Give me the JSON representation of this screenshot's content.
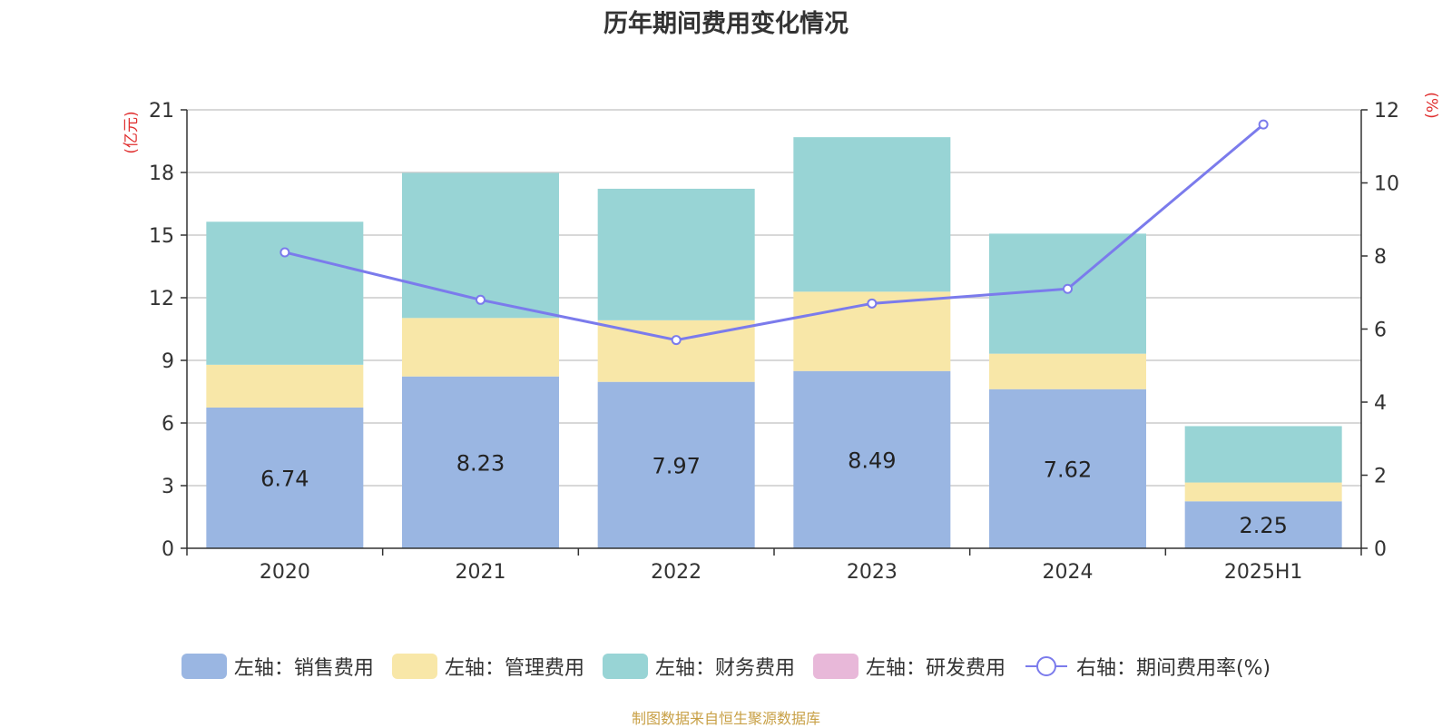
{
  "chart_data": {
    "type": "bar",
    "title": "历年期间费用变化情况",
    "categories": [
      "2020",
      "2021",
      "2022",
      "2023",
      "2024",
      "2025H1"
    ],
    "left_axis": {
      "unit_label": "(亿元)",
      "ylim": [
        0,
        21
      ],
      "ticks": [
        0,
        3,
        6,
        9,
        12,
        15,
        18,
        21
      ]
    },
    "right_axis": {
      "unit_label": "(%)",
      "ylim": [
        0,
        12
      ],
      "ticks": [
        0,
        2,
        4,
        6,
        8,
        10,
        12
      ]
    },
    "grid": true,
    "legend_position": "bottom",
    "series": [
      {
        "name": "左轴：销售费用",
        "type": "bar",
        "stack": "cost",
        "axis": "left",
        "color": "#9ab6e2",
        "values": [
          6.74,
          8.23,
          7.97,
          8.49,
          7.62,
          2.25
        ],
        "labels": [
          "6.74",
          "8.23",
          "7.97",
          "8.49",
          "7.62",
          "2.25"
        ]
      },
      {
        "name": "左轴：管理费用",
        "type": "bar",
        "stack": "cost",
        "axis": "left",
        "color": "#f8e7a8",
        "values": [
          2.05,
          2.8,
          2.95,
          3.8,
          1.7,
          0.9
        ]
      },
      {
        "name": "左轴：财务费用",
        "type": "bar",
        "stack": "cost",
        "axis": "left",
        "color": "#98d4d5",
        "values": [
          6.85,
          6.95,
          6.3,
          7.4,
          5.75,
          2.7
        ]
      },
      {
        "name": "左轴：研发费用",
        "type": "bar",
        "stack": "cost",
        "axis": "left",
        "color": "#e8b8d9",
        "values": [
          0,
          0,
          0,
          0,
          0,
          0
        ]
      },
      {
        "name": "右轴：期间费用率(%)",
        "type": "line",
        "axis": "right",
        "color": "#7b7bec",
        "values": [
          8.1,
          6.8,
          5.7,
          6.7,
          7.1,
          11.6
        ]
      }
    ]
  },
  "source_note": "制图数据来自恒生聚源数据库"
}
